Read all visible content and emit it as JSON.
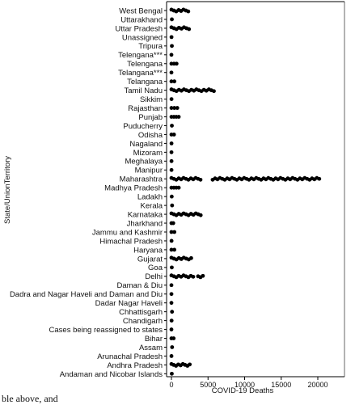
{
  "chart_data": {
    "type": "scatter",
    "xlabel": "COVID-19 Deaths",
    "ylabel": "State/UnionTerritory",
    "xlim": [
      -500,
      21500
    ],
    "xticks": [
      "0",
      "5000",
      "10000",
      "15000",
      "20000"
    ],
    "xtick_values": [
      0,
      5000,
      10000,
      15000,
      20000
    ],
    "grid": false,
    "marker_color": "#000000",
    "categories": [
      "West Bengal",
      "Uttarakhand",
      "Uttar Pradesh",
      "Unassigned",
      "Tripura",
      "Telengana***",
      "Telengana",
      "Telangana***",
      "Telangana",
      "Tamil Nadu",
      "Sikkim",
      "Rajasthan",
      "Punjab",
      "Puducherry",
      "Odisha",
      "Nagaland",
      "Mizoram",
      "Meghalaya",
      "Manipur",
      "Maharashtra",
      "Madhya Pradesh",
      "Ladakh",
      "Kerala",
      "Karnataka",
      "Jharkhand",
      "Jammu and Kashmir",
      "Himachal Pradesh",
      "Haryana",
      "Gujarat",
      "Goa",
      "Delhi",
      "Daman & Diu",
      "Dadra and Nagar Haveli and Daman and Diu",
      "Dadar Nagar Haveli",
      "Chhattisgarh",
      "Chandigarh",
      "Cases being reassigned to states",
      "Bihar",
      "Assam",
      "Arunachal Pradesh",
      "Andhra Pradesh",
      "Andaman and Nicobar Islands"
    ],
    "ranges": [
      {
        "category": "West Bengal",
        "min": 0,
        "max": 2300
      },
      {
        "category": "Uttarakhand",
        "min": 0,
        "max": 60
      },
      {
        "category": "Uttar Pradesh",
        "min": 0,
        "max": 2400
      },
      {
        "category": "Unassigned",
        "min": 0,
        "max": 10
      },
      {
        "category": "Tripura",
        "min": 0,
        "max": 60
      },
      {
        "category": "Telengana***",
        "min": 0,
        "max": 0
      },
      {
        "category": "Telengana",
        "min": 0,
        "max": 700
      },
      {
        "category": "Telangana***",
        "min": 0,
        "max": 0
      },
      {
        "category": "Telangana",
        "min": 0,
        "max": 400
      },
      {
        "category": "Tamil Nadu",
        "min": 0,
        "max": 5800
      },
      {
        "category": "Sikkim",
        "min": 0,
        "max": 10
      },
      {
        "category": "Rajasthan",
        "min": 0,
        "max": 800
      },
      {
        "category": "Punjab",
        "min": 0,
        "max": 1000
      },
      {
        "category": "Puducherry",
        "min": 0,
        "max": 60
      },
      {
        "category": "Odisha",
        "min": 0,
        "max": 350
      },
      {
        "category": "Nagaland",
        "min": 0,
        "max": 10
      },
      {
        "category": "Mizoram",
        "min": 0,
        "max": 5
      },
      {
        "category": "Meghalaya",
        "min": 0,
        "max": 10
      },
      {
        "category": "Manipur",
        "min": 0,
        "max": 10
      },
      {
        "category": "Maharashtra",
        "min": 0,
        "max": 20200,
        "gap": [
          4000,
          5500
        ]
      },
      {
        "category": "Madhya Pradesh",
        "min": 0,
        "max": 1000
      },
      {
        "category": "Ladakh",
        "min": 0,
        "max": 40
      },
      {
        "category": "Kerala",
        "min": 0,
        "max": 90
      },
      {
        "category": "Karnataka",
        "min": 0,
        "max": 4000
      },
      {
        "category": "Jharkhand",
        "min": 0,
        "max": 250
      },
      {
        "category": "Jammu and Kashmir",
        "min": 0,
        "max": 400
      },
      {
        "category": "Himachal Pradesh",
        "min": 0,
        "max": 15
      },
      {
        "category": "Haryana",
        "min": 0,
        "max": 400
      },
      {
        "category": "Gujarat",
        "min": 0,
        "max": 2700
      },
      {
        "category": "Goa",
        "min": 0,
        "max": 50
      },
      {
        "category": "Delhi",
        "min": 0,
        "max": 4300,
        "gap": [
          3200,
          3400
        ]
      },
      {
        "category": "Daman & Diu",
        "min": 0,
        "max": 0
      },
      {
        "category": "Dadra and Nagar Haveli and Daman and Diu",
        "min": 0,
        "max": 2
      },
      {
        "category": "Dadar Nagar Haveli",
        "min": 0,
        "max": 0
      },
      {
        "category": "Chhattisgarh",
        "min": 0,
        "max": 80
      },
      {
        "category": "Chandigarh",
        "min": 0,
        "max": 20
      },
      {
        "category": "Cases being reassigned to states",
        "min": 0,
        "max": 0
      },
      {
        "category": "Bihar",
        "min": 0,
        "max": 300
      },
      {
        "category": "Assam",
        "min": 0,
        "max": 90
      },
      {
        "category": "Arunachal Pradesh",
        "min": 0,
        "max": 5
      },
      {
        "category": "Andhra Pradesh",
        "min": 0,
        "max": 2500
      },
      {
        "category": "Andaman and Nicobar Islands",
        "min": 0,
        "max": 50
      }
    ]
  },
  "footer_fragment": "ble above, and"
}
